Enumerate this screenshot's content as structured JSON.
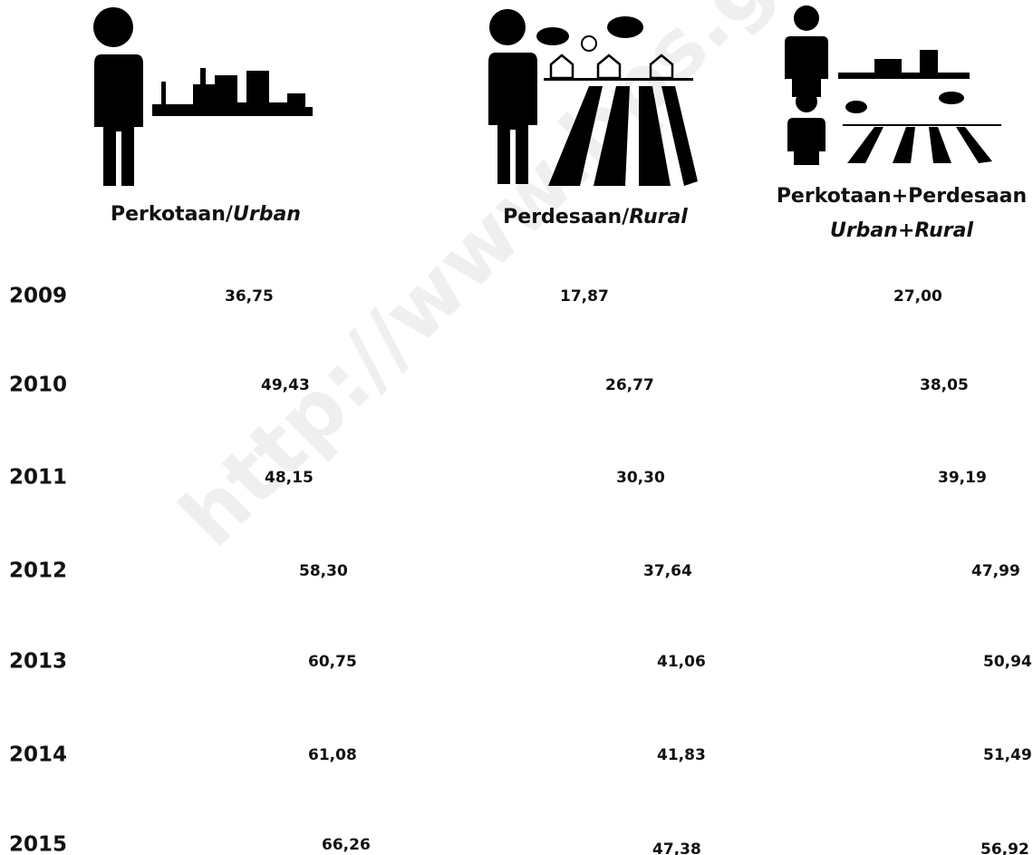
{
  "headers": [
    {
      "text": "Perkotaan/",
      "italic": "Urban"
    },
    {
      "text": "Perdesaan/",
      "italic": "Rural"
    },
    {
      "text": "Perkotaan+Perdesaan",
      "italic": "Urban+Rural"
    }
  ],
  "rows": [
    {
      "year": "2009",
      "values": [
        "36,75",
        "17,87",
        "27,00"
      ]
    },
    {
      "year": "2010",
      "values": [
        "49,43",
        "26,77",
        "38,05"
      ]
    },
    {
      "year": "2011",
      "values": [
        "48,15",
        "30,30",
        "39,19"
      ]
    },
    {
      "year": "2012",
      "values": [
        "58,30",
        "37,64",
        "47,99"
      ]
    },
    {
      "year": "2013",
      "values": [
        "60,75",
        "41,06",
        "50,94"
      ]
    },
    {
      "year": "2014",
      "values": [
        "61,08",
        "41,83",
        "51,49"
      ]
    },
    {
      "year": "2015",
      "values": [
        "66,26",
        "47,38",
        "56,92"
      ]
    }
  ],
  "watermark": "http://www.bps.go.id"
}
